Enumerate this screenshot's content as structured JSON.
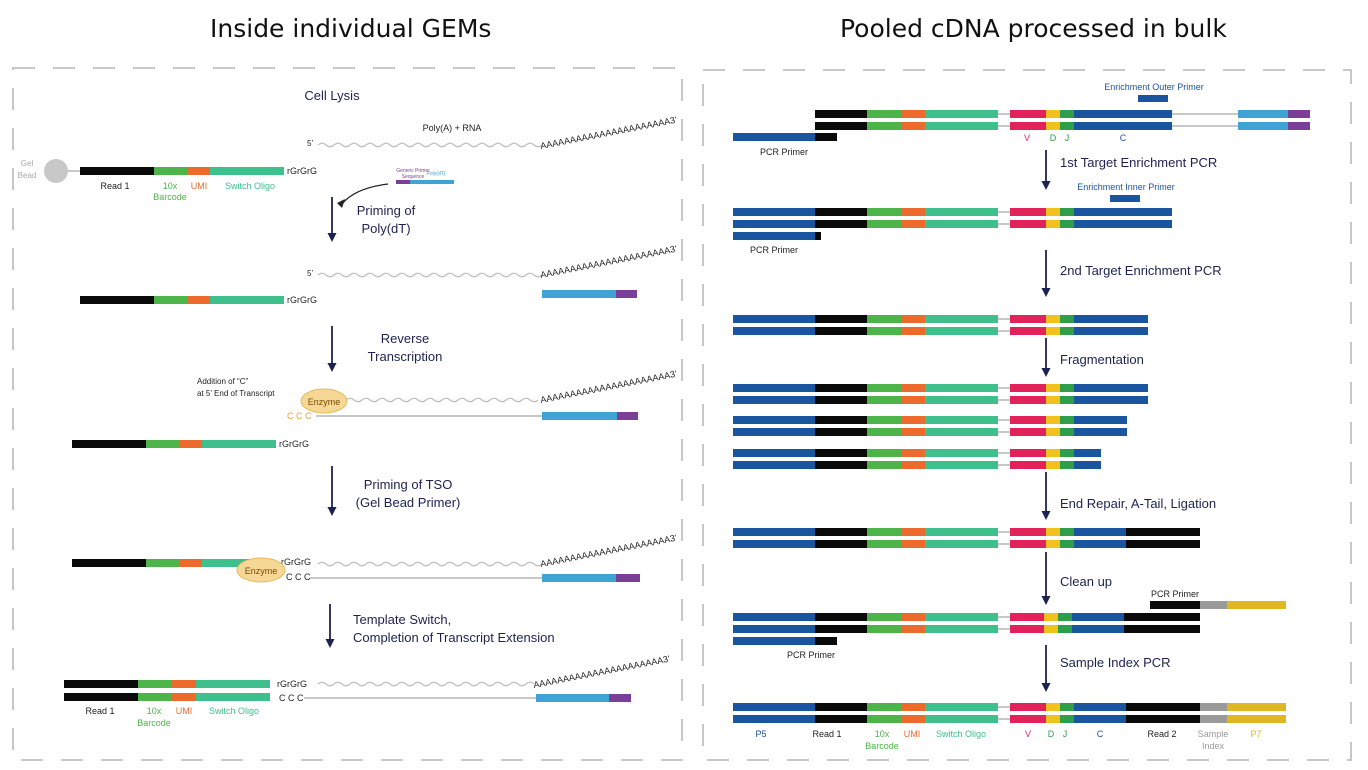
{
  "titles": {
    "left": "Inside individual GEMs",
    "right": "Pooled cDNA processed in bulk"
  },
  "colors": {
    "black": "#0a0a0a",
    "green": "#4db44a",
    "orange": "#ec6a2c",
    "teal": "#3fbf8c",
    "lightblue": "#41a2d6",
    "purple": "#7b3f98",
    "pink": "#e2225b",
    "yellow": "#f1c21e",
    "darkgreen": "#2e9e4a",
    "blue": "#1a56a0",
    "gray": "#9a9a9a",
    "gold": "#e0b722",
    "bead": "#c8c8c8",
    "enzyme": "#f6d896",
    "navy": "#1d2250",
    "dash": "#c7c7c7"
  },
  "left": {
    "cell_lysis": "Cell Lysis",
    "five_prime": "5’",
    "polya_rna": "Poly(A) + RNA",
    "polya_tail": "AAAAAAAAAAAAAAAAAAAAAA3’",
    "gel_bead": [
      "Gel",
      "Bead"
    ],
    "rgrgrg": "rGrGrG",
    "ccc": "C C C",
    "read1": "Read 1",
    "barcode": [
      "10x",
      "Barcode"
    ],
    "umi": "UMI",
    "switch_oligo": "Switch Oligo",
    "generic_primer": [
      "Generic Primer",
      "Sequence"
    ],
    "polydt_small": "Poly(dT)",
    "enzyme": "Enzyme",
    "addition": [
      "Addition of “C”",
      "at 5’ End of Transcript"
    ],
    "steps": [
      [
        "Priming of",
        "Poly(dT)"
      ],
      [
        "Reverse",
        "Transcription"
      ],
      [
        "Priming of TSO",
        "(Gel Bead Primer)"
      ],
      [
        "Template Switch,",
        "Completion of Transcript Extension"
      ]
    ]
  },
  "right": {
    "outer_primer": "Enrichment Outer Primer",
    "inner_primer": "Enrichment Inner Primer",
    "pcr_primer": "PCR Primer",
    "vdjc": [
      "V",
      "D",
      "J",
      "C"
    ],
    "steps": [
      "1st Target Enrichment PCR",
      "2nd Target Enrichment PCR",
      "Fragmentation",
      "End Repair, A-Tail, Ligation",
      "Clean up",
      "Sample Index PCR"
    ],
    "final_labels": {
      "p5": "P5",
      "read1": "Read 1",
      "barcode": [
        "10x",
        "Barcode"
      ],
      "umi": "UMI",
      "switch_oligo": "Switch Oligo",
      "v": "V",
      "d": "D",
      "j": "J",
      "c": "C",
      "read2": "Read 2",
      "sample_index": [
        "Sample",
        "Index"
      ],
      "p7": "P7"
    }
  }
}
